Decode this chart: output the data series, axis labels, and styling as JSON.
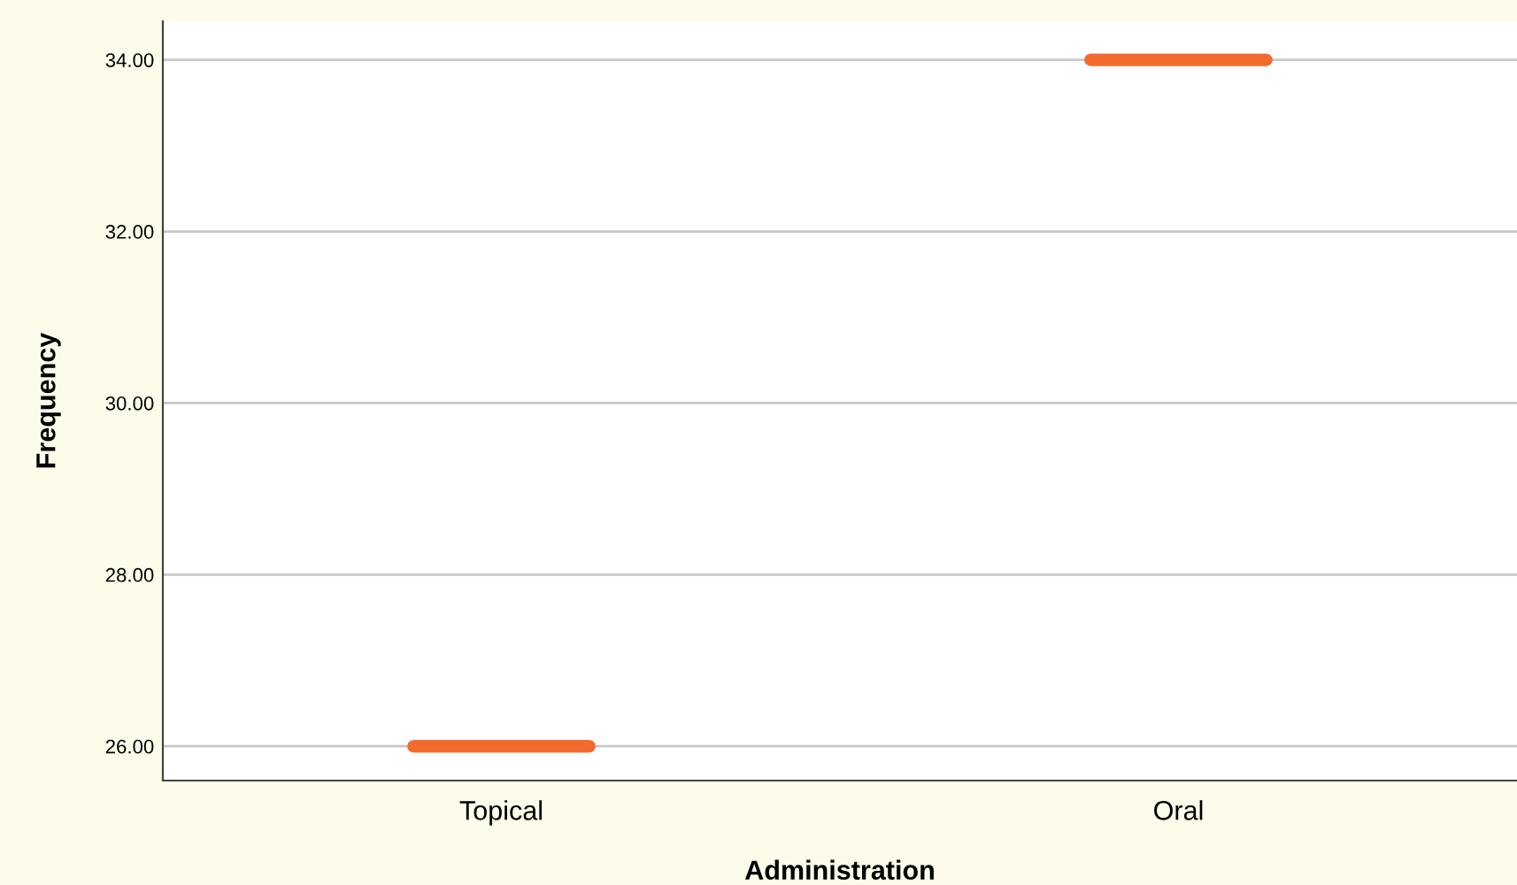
{
  "chart_data": {
    "type": "box",
    "xlabel": "Administration",
    "ylabel": "Frequency",
    "categories": [
      "Topical",
      "Oral"
    ],
    "boxes": [
      {
        "low": 26,
        "q1": 26,
        "median": 26,
        "q3": 26,
        "high": 26
      },
      {
        "low": 34,
        "q1": 34,
        "median": 34,
        "q3": 34,
        "high": 34
      }
    ],
    "color": "#f26b2c",
    "ylim": [
      25.6,
      34.45
    ],
    "yticks": [
      {
        "value": 26,
        "label": "26.00"
      },
      {
        "value": 28,
        "label": "28.00"
      },
      {
        "value": 30,
        "label": "30.00"
      },
      {
        "value": 32,
        "label": "32.00"
      },
      {
        "value": 34,
        "label": "34.00"
      }
    ],
    "grid": "y"
  }
}
